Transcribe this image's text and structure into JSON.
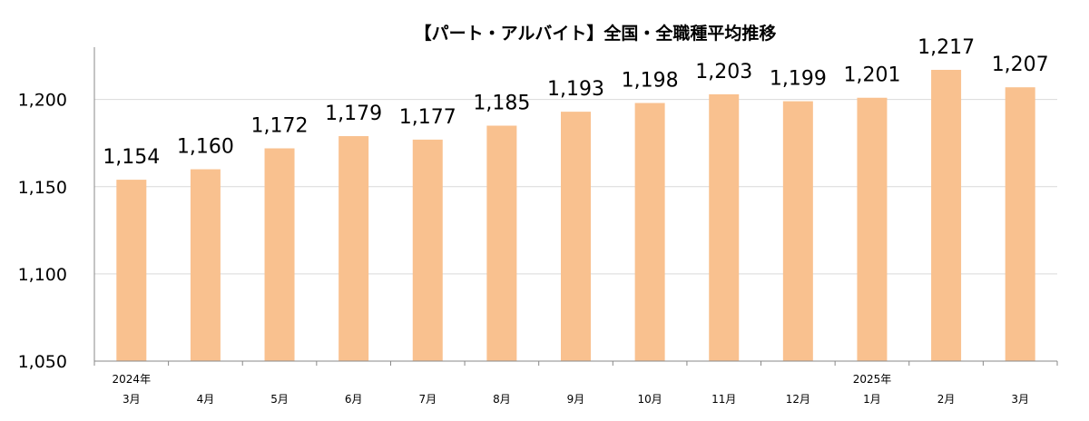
{
  "chart_data": {
    "type": "bar",
    "title": "【パート・アルバイト】全国・全職種平均推移",
    "xlabel": "",
    "ylabel": "",
    "categories": [
      "3月",
      "4月",
      "5月",
      "6月",
      "7月",
      "8月",
      "9月",
      "10月",
      "11月",
      "12月",
      "1月",
      "2月",
      "3月"
    ],
    "year_labels": [
      {
        "index": 0,
        "label": "2024年"
      },
      {
        "index": 10,
        "label": "2025年"
      }
    ],
    "values": [
      1154,
      1160,
      1172,
      1179,
      1177,
      1185,
      1193,
      1198,
      1203,
      1199,
      1201,
      1217,
      1207
    ],
    "value_labels": [
      "1,154",
      "1,160",
      "1,172",
      "1,179",
      "1,177",
      "1,185",
      "1,193",
      "1,198",
      "1,203",
      "1,199",
      "1,201",
      "1,217",
      "1,207"
    ],
    "yticks": [
      1050,
      1100,
      1150,
      1200
    ],
    "ytick_labels": [
      "1,050",
      "1,100",
      "1,150",
      "1,200"
    ],
    "ylim": [
      1050,
      1230
    ],
    "grid": true,
    "bar_color": "#F9C18F",
    "grid_color": "#D9D9D9"
  }
}
